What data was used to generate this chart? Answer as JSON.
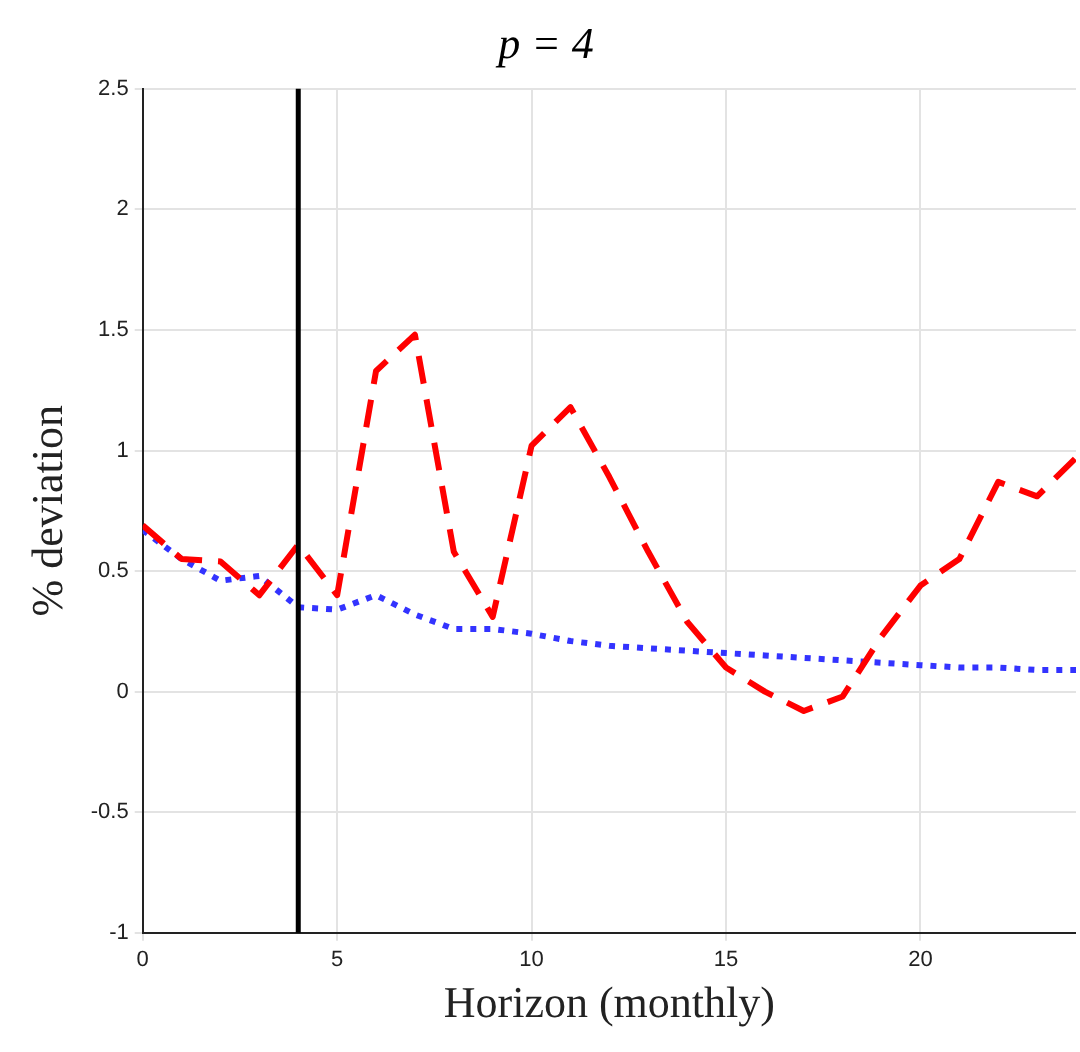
{
  "chart_data": {
    "type": "line",
    "title": "p = 4",
    "xlabel": "Horizon (monthly)",
    "ylabel": "% deviation",
    "x": [
      0,
      1,
      2,
      3,
      4,
      5,
      6,
      7,
      8,
      9,
      10,
      11,
      12,
      13,
      14,
      15,
      16,
      17,
      18,
      19,
      20,
      21,
      22,
      23,
      24
    ],
    "series": [
      {
        "color": "#ff0000",
        "line_style": "dashed",
        "values": [
          0.69,
          0.55,
          0.54,
          0.4,
          0.61,
          0.4,
          1.33,
          1.48,
          0.58,
          0.31,
          1.02,
          1.18,
          0.89,
          0.58,
          0.29,
          0.1,
          0.0,
          -0.08,
          -0.02,
          0.23,
          0.44,
          0.55,
          0.87,
          0.81,
          0.97
        ]
      },
      {
        "color": "#3333ff",
        "line_style": "dotted",
        "values": [
          0.67,
          0.55,
          0.46,
          0.48,
          0.35,
          0.34,
          0.4,
          0.32,
          0.26,
          0.26,
          0.24,
          0.21,
          0.19,
          0.18,
          0.17,
          0.16,
          0.15,
          0.14,
          0.13,
          0.12,
          0.11,
          0.1,
          0.1,
          0.09,
          0.09
        ]
      }
    ],
    "xlim": [
      0,
      24
    ],
    "xticks": [
      0,
      5,
      10,
      15,
      20
    ],
    "ylim": [
      -1,
      2.5
    ],
    "yticks": [
      -1,
      -0.5,
      0,
      0.5,
      1,
      1.5,
      2,
      2.5
    ],
    "ref_lines": [
      {
        "axis": "x",
        "value": 4,
        "color": "#000000"
      }
    ],
    "grid": true,
    "legend": false,
    "marker": "none"
  }
}
